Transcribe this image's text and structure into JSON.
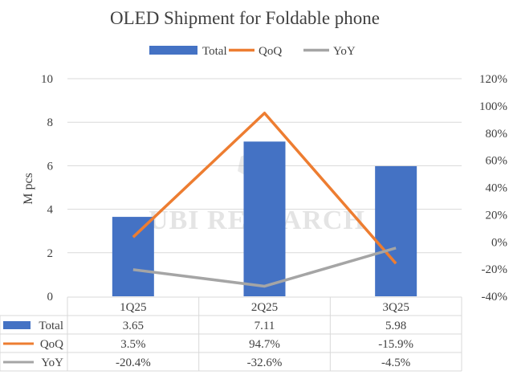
{
  "chart_data": {
    "type": "bar+line",
    "title": "OLED Shipment for Foldable phone",
    "ylabel": "M pcs",
    "ylabel_right": "",
    "categories": [
      "1Q25",
      "2Q25",
      "3Q25"
    ],
    "ylim": [
      0,
      10
    ],
    "yticks": [
      0,
      2,
      4,
      6,
      8,
      10
    ],
    "y2lim": [
      -40,
      120
    ],
    "y2ticks": [
      "-40%",
      "-20%",
      "0%",
      "20%",
      "40%",
      "60%",
      "80%",
      "100%",
      "120%"
    ],
    "y2tick_values": [
      -40,
      -20,
      0,
      20,
      40,
      60,
      80,
      100,
      120
    ],
    "grid": true,
    "legend_position": "top",
    "series": [
      {
        "name": "Total",
        "type": "bar",
        "axis": "left",
        "color": "#4472C4",
        "values": [
          3.65,
          7.11,
          5.98
        ],
        "labels": [
          "3.65",
          "7.11",
          "5.98"
        ]
      },
      {
        "name": "QoQ",
        "type": "line",
        "axis": "right",
        "color": "#ED7D31",
        "values": [
          3.5,
          94.7,
          -15.9
        ],
        "labels": [
          "3.5%",
          "94.7%",
          "-15.9%"
        ]
      },
      {
        "name": "YoY",
        "type": "line",
        "axis": "right",
        "color": "#A5A5A5",
        "values": [
          -20.4,
          -32.6,
          -4.5
        ],
        "labels": [
          "-20.4%",
          "-32.6%",
          "-4.5%"
        ]
      }
    ],
    "data_table": true
  },
  "watermark": "UBI RESEARCH"
}
